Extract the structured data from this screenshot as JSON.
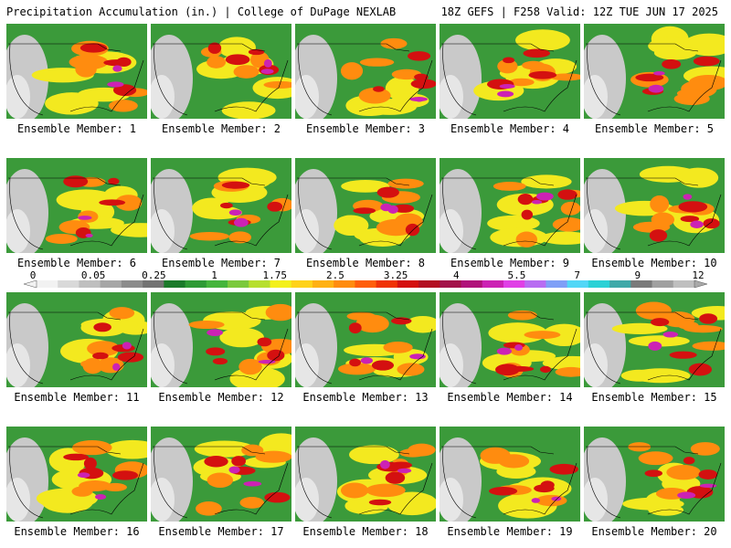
{
  "header": {
    "title": "Precipitation Accumulation (in.) | College of DuPage NEXLAB",
    "run_info": "18Z GEFS | F258 Valid: 12Z TUE JUN 17 2025"
  },
  "panels": [
    {
      "label": "Ensemble Member: 1"
    },
    {
      "label": "Ensemble Member: 2"
    },
    {
      "label": "Ensemble Member: 3"
    },
    {
      "label": "Ensemble Member: 4"
    },
    {
      "label": "Ensemble Member: 5"
    },
    {
      "label": "Ensemble Member: 6"
    },
    {
      "label": "Ensemble Member: 7"
    },
    {
      "label": "Ensemble Member: 8"
    },
    {
      "label": "Ensemble Member: 9"
    },
    {
      "label": "Ensemble Member: 10"
    },
    {
      "label": "Ensemble Member: 11"
    },
    {
      "label": "Ensemble Member: 12"
    },
    {
      "label": "Ensemble Member: 13"
    },
    {
      "label": "Ensemble Member: 14"
    },
    {
      "label": "Ensemble Member: 15"
    },
    {
      "label": "Ensemble Member: 16"
    },
    {
      "label": "Ensemble Member: 17"
    },
    {
      "label": "Ensemble Member: 18"
    },
    {
      "label": "Ensemble Member: 19"
    },
    {
      "label": "Ensemble Member: 20"
    }
  ],
  "legend": {
    "tick_labels": [
      "0",
      "0.05",
      "0.25",
      "1",
      "1.75",
      "2.5",
      "3.25",
      "4",
      "5.5",
      "7",
      "9",
      "12"
    ],
    "colors": [
      "#f2f2f2",
      "#d9d9d9",
      "#bfbfbf",
      "#a6a6a6",
      "#8c8c8c",
      "#737373",
      "#1b7a2a",
      "#2e9a35",
      "#45b53c",
      "#7bc93d",
      "#b7df2e",
      "#f3f01c",
      "#ffd21a",
      "#ffb114",
      "#ff8c0f",
      "#ff5e0a",
      "#f03205",
      "#d41010",
      "#b30f22",
      "#a3124a",
      "#b0137a",
      "#cc22b4",
      "#e040e6",
      "#b86cf2",
      "#7f9ff7",
      "#52d7f7",
      "#2bd1d6",
      "#3fa9a9",
      "#7a7a7a",
      "#a0a0a0",
      "#bfbfbf"
    ]
  }
}
